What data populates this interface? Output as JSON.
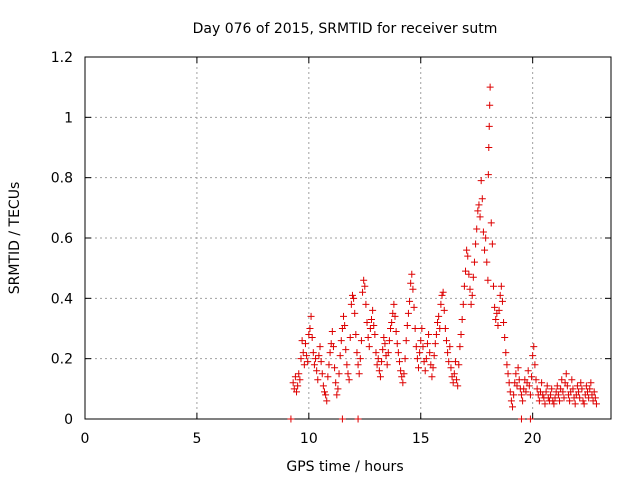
{
  "chart_data": {
    "type": "scatter",
    "title": "Day 076 of 2015, SRMTID for receiver sutm",
    "xlabel": "GPS time / hours",
    "ylabel": "SRMTID / TECUs",
    "xlim": [
      0,
      23.5
    ],
    "ylim": [
      0,
      1.2
    ],
    "xticks": [
      0,
      5,
      10,
      15,
      20
    ],
    "xtick_labels": [
      "0",
      "5",
      "10",
      "15",
      "20"
    ],
    "yticks": [
      0,
      0.2,
      0.4,
      0.6,
      0.8,
      1,
      1.2
    ],
    "ytick_labels": [
      "0",
      "0.2",
      "0.4",
      "0.6",
      "0.8",
      "1",
      "1.2"
    ],
    "grid": true,
    "marker": "plus",
    "marker_color": "#dd0000",
    "series": [
      {
        "name": "SRMTID",
        "color": "#dd0000",
        "x": [
          9.2,
          11.5,
          12.2,
          19.5,
          19.9,
          9.3,
          9.35,
          9.4,
          9.45,
          9.5,
          9.55,
          9.6,
          9.65,
          9.7,
          9.75,
          9.8,
          9.85,
          9.9,
          9.95,
          10.0,
          10.05,
          10.1,
          10.15,
          10.2,
          10.25,
          10.3,
          10.35,
          10.4,
          10.45,
          10.5,
          10.55,
          10.6,
          10.65,
          10.7,
          10.75,
          10.8,
          10.85,
          10.9,
          10.95,
          11.0,
          11.05,
          11.1,
          11.15,
          11.2,
          11.25,
          11.3,
          11.35,
          11.4,
          11.45,
          11.5,
          11.55,
          11.6,
          11.65,
          11.7,
          11.75,
          11.8,
          11.85,
          11.9,
          11.95,
          12.0,
          12.05,
          12.1,
          12.15,
          12.2,
          12.25,
          12.3,
          12.35,
          12.4,
          12.45,
          12.5,
          12.55,
          12.6,
          12.65,
          12.7,
          12.75,
          12.8,
          12.85,
          12.9,
          12.95,
          13.0,
          13.05,
          13.1,
          13.15,
          13.2,
          13.25,
          13.3,
          13.35,
          13.4,
          13.45,
          13.5,
          13.55,
          13.6,
          13.65,
          13.7,
          13.75,
          13.8,
          13.85,
          13.9,
          13.95,
          14.0,
          14.05,
          14.1,
          14.15,
          14.2,
          14.25,
          14.3,
          14.35,
          14.4,
          14.45,
          14.5,
          14.55,
          14.6,
          14.65,
          14.7,
          14.75,
          14.8,
          14.85,
          14.9,
          14.95,
          15.0,
          15.05,
          15.1,
          15.15,
          15.2,
          15.25,
          15.3,
          15.35,
          15.4,
          15.45,
          15.5,
          15.55,
          15.6,
          15.65,
          15.7,
          15.75,
          15.8,
          15.85,
          15.9,
          15.95,
          16.0,
          16.05,
          16.1,
          16.15,
          16.2,
          16.25,
          16.3,
          16.35,
          16.4,
          16.45,
          16.5,
          16.55,
          16.6,
          16.65,
          16.7,
          16.75,
          16.8,
          16.85,
          16.9,
          16.95,
          17.0,
          17.05,
          17.1,
          17.15,
          17.2,
          17.25,
          17.3,
          17.35,
          17.4,
          17.45,
          17.5,
          17.55,
          17.6,
          17.65,
          17.7,
          17.75,
          17.8,
          17.85,
          17.9,
          17.95,
          18.0,
          18.02,
          18.04,
          18.06,
          18.08,
          18.1,
          18.15,
          18.2,
          18.25,
          18.3,
          18.35,
          18.4,
          18.45,
          18.5,
          18.55,
          18.6,
          18.65,
          18.7,
          18.75,
          18.8,
          18.85,
          18.9,
          18.95,
          19.0,
          19.05,
          19.1,
          19.15,
          19.2,
          19.25,
          19.3,
          19.35,
          19.4,
          19.45,
          19.5,
          19.55,
          19.6,
          19.65,
          19.7,
          19.75,
          19.8,
          19.85,
          19.9,
          19.95,
          20.0,
          20.05,
          20.1,
          20.15,
          20.2,
          20.25,
          20.3,
          20.35,
          20.4,
          20.45,
          20.5,
          20.55,
          20.6,
          20.65,
          20.7,
          20.75,
          20.8,
          20.85,
          20.9,
          20.95,
          21.0,
          21.05,
          21.1,
          21.15,
          21.2,
          21.25,
          21.3,
          21.35,
          21.4,
          21.45,
          21.5,
          21.55,
          21.6,
          21.65,
          21.7,
          21.75,
          21.8,
          21.85,
          21.9,
          21.95,
          22.0,
          22.05,
          22.1,
          22.15,
          22.2,
          22.25,
          22.3,
          22.35,
          22.4,
          22.45,
          22.5,
          22.55,
          22.6,
          22.65,
          22.7,
          22.75,
          22.8,
          22.85
        ],
        "y": [
          0.0,
          0.0,
          0.0,
          0.0,
          0.0,
          0.12,
          0.1,
          0.14,
          0.09,
          0.11,
          0.15,
          0.13,
          0.2,
          0.26,
          0.22,
          0.18,
          0.25,
          0.21,
          0.19,
          0.28,
          0.3,
          0.34,
          0.27,
          0.22,
          0.18,
          0.2,
          0.16,
          0.13,
          0.21,
          0.24,
          0.19,
          0.15,
          0.11,
          0.09,
          0.08,
          0.06,
          0.14,
          0.18,
          0.22,
          0.25,
          0.29,
          0.24,
          0.17,
          0.12,
          0.08,
          0.1,
          0.15,
          0.21,
          0.26,
          0.3,
          0.34,
          0.31,
          0.23,
          0.18,
          0.15,
          0.13,
          0.27,
          0.38,
          0.41,
          0.4,
          0.35,
          0.28,
          0.22,
          0.18,
          0.15,
          0.2,
          0.26,
          0.42,
          0.46,
          0.44,
          0.38,
          0.32,
          0.27,
          0.24,
          0.3,
          0.33,
          0.36,
          0.31,
          0.28,
          0.22,
          0.18,
          0.2,
          0.16,
          0.14,
          0.19,
          0.23,
          0.27,
          0.25,
          0.21,
          0.18,
          0.22,
          0.26,
          0.3,
          0.32,
          0.35,
          0.38,
          0.34,
          0.29,
          0.25,
          0.22,
          0.19,
          0.16,
          0.14,
          0.12,
          0.15,
          0.2,
          0.26,
          0.31,
          0.35,
          0.39,
          0.45,
          0.48,
          0.43,
          0.37,
          0.3,
          0.24,
          0.2,
          0.17,
          0.22,
          0.26,
          0.3,
          0.24,
          0.19,
          0.16,
          0.2,
          0.25,
          0.28,
          0.22,
          0.18,
          0.14,
          0.17,
          0.21,
          0.25,
          0.28,
          0.32,
          0.34,
          0.3,
          0.38,
          0.41,
          0.42,
          0.36,
          0.3,
          0.26,
          0.22,
          0.19,
          0.24,
          0.17,
          0.14,
          0.12,
          0.15,
          0.19,
          0.13,
          0.11,
          0.18,
          0.24,
          0.28,
          0.33,
          0.38,
          0.44,
          0.49,
          0.56,
          0.54,
          0.48,
          0.43,
          0.38,
          0.41,
          0.47,
          0.52,
          0.58,
          0.63,
          0.69,
          0.71,
          0.67,
          0.79,
          0.73,
          0.62,
          0.56,
          0.6,
          0.52,
          0.46,
          0.81,
          0.9,
          0.97,
          1.04,
          1.1,
          0.65,
          0.58,
          0.44,
          0.37,
          0.33,
          0.35,
          0.31,
          0.36,
          0.41,
          0.44,
          0.39,
          0.32,
          0.27,
          0.22,
          0.18,
          0.15,
          0.12,
          0.09,
          0.06,
          0.04,
          0.08,
          0.12,
          0.15,
          0.11,
          0.17,
          0.13,
          0.1,
          0.08,
          0.06,
          0.1,
          0.13,
          0.09,
          0.12,
          0.16,
          0.11,
          0.08,
          0.14,
          0.21,
          0.24,
          0.18,
          0.13,
          0.1,
          0.08,
          0.06,
          0.09,
          0.12,
          0.08,
          0.07,
          0.05,
          0.09,
          0.11,
          0.07,
          0.06,
          0.08,
          0.1,
          0.06,
          0.05,
          0.07,
          0.09,
          0.11,
          0.08,
          0.06,
          0.1,
          0.13,
          0.09,
          0.07,
          0.12,
          0.15,
          0.11,
          0.08,
          0.06,
          0.09,
          0.13,
          0.1,
          0.07,
          0.05,
          0.08,
          0.11,
          0.09,
          0.07,
          0.12,
          0.1,
          0.06,
          0.05,
          0.08,
          0.11,
          0.09,
          0.07,
          0.1,
          0.12,
          0.08,
          0.06,
          0.09,
          0.07,
          0.05
        ]
      }
    ]
  }
}
